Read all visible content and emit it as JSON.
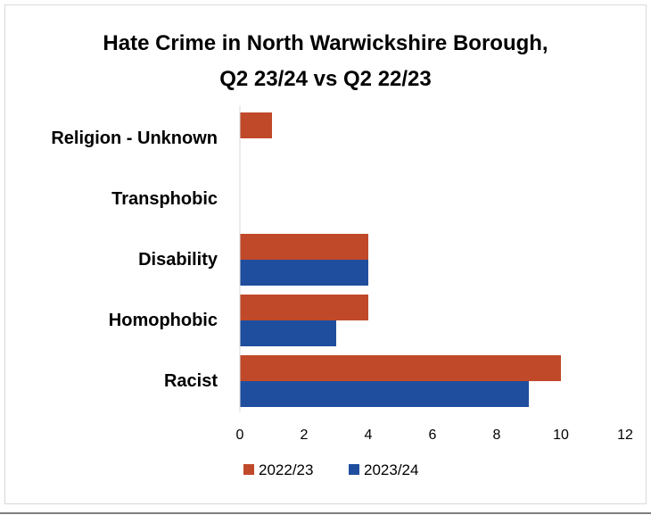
{
  "chart_data": {
    "type": "bar",
    "orientation": "horizontal",
    "title_lines": [
      "Hate Crime in North Warwickshire Borough,",
      "Q2 23/24 vs Q2 22/23"
    ],
    "categories": [
      "Religion - Unknown",
      "Transphobic",
      "Disability",
      "Homophobic",
      "Racist"
    ],
    "series": [
      {
        "name": "2022/23",
        "color": "#c0492a",
        "values": [
          1,
          0,
          4,
          4,
          10
        ]
      },
      {
        "name": "2023/24",
        "color": "#1f4e9e",
        "values": [
          0,
          0,
          4,
          3,
          9
        ]
      }
    ],
    "xticks": [
      "0",
      "2",
      "4",
      "6",
      "8",
      "10",
      "12"
    ],
    "xlim": [
      0,
      12
    ],
    "grid": false,
    "legend_position": "bottom"
  }
}
